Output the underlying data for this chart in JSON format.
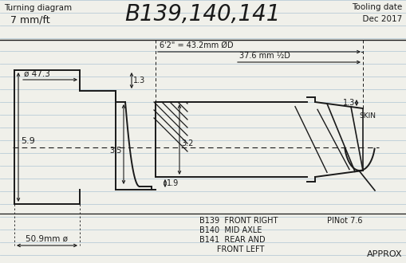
{
  "bg_color": "#f0f0ea",
  "line_color": "#1a1a1a",
  "grid_color": "#b8ccd8",
  "figsize": [
    5.09,
    3.3
  ],
  "dpi": 100,
  "title_left1": "Turning diagram",
  "title_left2": "  7 mm/ft",
  "title_center": "B139,140,141",
  "title_right": "Tooling date\n  Dec 2017",
  "dim_top_text": "6'2\" = 43.2mm ØD",
  "dim_mid_text": "37.6 mm ½D",
  "dim_phi": "ø 47.3",
  "dim_509": "50.9mm ø",
  "d13a": "1.3",
  "d35": "3.5",
  "d32": "3.2",
  "d19": "1.9",
  "d59": "5.9",
  "d13b": "1.3",
  "label_skin": "SKIN",
  "label_b139": "B139  FRONT RIGHT",
  "label_b140": "B140  MID AXLE",
  "label_b141": "B141  REAR AND",
  "label_b141b": "       FRONT LEFT",
  "label_pin": "PINot 7.6",
  "label_approx": "APPROX"
}
